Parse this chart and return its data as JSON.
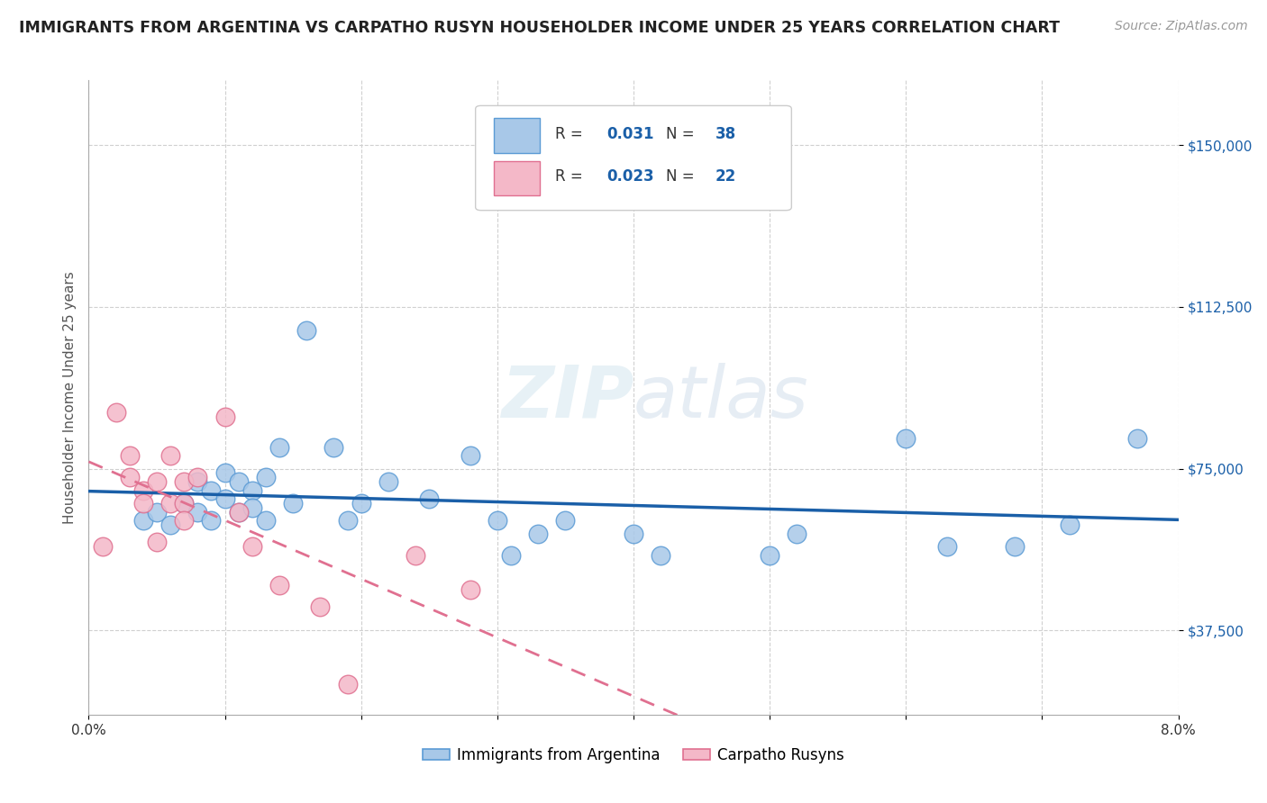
{
  "title": "IMMIGRANTS FROM ARGENTINA VS CARPATHO RUSYN HOUSEHOLDER INCOME UNDER 25 YEARS CORRELATION CHART",
  "source": "Source: ZipAtlas.com",
  "ylabel": "Householder Income Under 25 years",
  "xlim": [
    0.0,
    0.08
  ],
  "ylim": [
    18000,
    165000
  ],
  "yticks": [
    37500,
    75000,
    112500,
    150000
  ],
  "ytick_labels": [
    "$37,500",
    "$75,000",
    "$112,500",
    "$150,000"
  ],
  "xticks": [
    0.0,
    0.01,
    0.02,
    0.03,
    0.04,
    0.05,
    0.06,
    0.07,
    0.08
  ],
  "xtick_labels": [
    "0.0%",
    "",
    "",
    "",
    "",
    "",
    "",
    "",
    "8.0%"
  ],
  "argentina_color": "#a8c8e8",
  "argentina_edge": "#5b9bd5",
  "rusyn_color": "#f4b8c8",
  "rusyn_edge": "#e07090",
  "argentina_R": 0.031,
  "argentina_N": 38,
  "rusyn_R": 0.023,
  "rusyn_N": 22,
  "trend_argentina_color": "#1a5fa8",
  "trend_rusyn_color": "#e07090",
  "watermark_zip": "ZIP",
  "watermark_atlas": "atlas",
  "argentina_x": [
    0.004,
    0.005,
    0.006,
    0.007,
    0.008,
    0.008,
    0.009,
    0.009,
    0.01,
    0.01,
    0.011,
    0.011,
    0.012,
    0.012,
    0.013,
    0.013,
    0.014,
    0.015,
    0.016,
    0.018,
    0.019,
    0.02,
    0.022,
    0.025,
    0.028,
    0.03,
    0.031,
    0.033,
    0.035,
    0.04,
    0.042,
    0.05,
    0.052,
    0.06,
    0.063,
    0.068,
    0.072,
    0.077
  ],
  "argentina_y": [
    63000,
    65000,
    62000,
    67000,
    72000,
    65000,
    70000,
    63000,
    74000,
    68000,
    72000,
    65000,
    70000,
    66000,
    73000,
    63000,
    80000,
    67000,
    107000,
    80000,
    63000,
    67000,
    72000,
    68000,
    78000,
    63000,
    55000,
    60000,
    63000,
    60000,
    55000,
    55000,
    60000,
    82000,
    57000,
    57000,
    62000,
    82000
  ],
  "rusyn_x": [
    0.001,
    0.002,
    0.003,
    0.003,
    0.004,
    0.004,
    0.005,
    0.005,
    0.006,
    0.006,
    0.007,
    0.007,
    0.007,
    0.008,
    0.01,
    0.011,
    0.012,
    0.014,
    0.017,
    0.019,
    0.024,
    0.028
  ],
  "rusyn_y": [
    57000,
    88000,
    73000,
    78000,
    70000,
    67000,
    72000,
    58000,
    78000,
    67000,
    72000,
    67000,
    63000,
    73000,
    87000,
    65000,
    57000,
    48000,
    43000,
    25000,
    55000,
    47000
  ]
}
